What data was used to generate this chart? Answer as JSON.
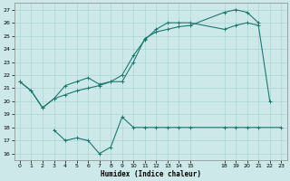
{
  "xlabel": "Humidex (Indice chaleur)",
  "bg_color": "#cce8e8",
  "line_color": "#1a7a6e",
  "grid_color": "#aad4d4",
  "xlim": [
    -0.5,
    23.5
  ],
  "ylim": [
    15.5,
    27.5
  ],
  "xticks": [
    0,
    1,
    2,
    3,
    4,
    5,
    6,
    7,
    8,
    9,
    10,
    11,
    12,
    13,
    14,
    15,
    18,
    19,
    20,
    21,
    22,
    23
  ],
  "yticks": [
    16,
    17,
    18,
    19,
    20,
    21,
    22,
    23,
    24,
    25,
    26,
    27
  ],
  "line1_x": [
    0,
    1,
    2,
    3,
    4,
    5,
    6,
    7,
    8,
    9,
    10,
    11,
    12,
    13,
    14,
    15,
    18,
    19,
    20,
    21
  ],
  "line1_y": [
    21.5,
    20.8,
    19.5,
    20.2,
    20.5,
    20.8,
    21.0,
    21.2,
    21.5,
    21.5,
    23.0,
    24.8,
    25.3,
    25.5,
    25.7,
    25.8,
    26.8,
    27.0,
    26.8,
    26.0
  ],
  "line2_x": [
    0,
    1,
    2,
    3,
    4,
    5,
    6,
    7,
    8,
    9,
    10,
    11,
    12,
    13,
    14,
    15,
    18,
    19,
    20,
    21,
    22
  ],
  "line2_y": [
    21.5,
    20.8,
    19.5,
    20.2,
    21.2,
    21.5,
    21.8,
    21.3,
    21.5,
    22.0,
    23.5,
    24.7,
    25.5,
    26.0,
    26.0,
    26.0,
    25.5,
    25.8,
    26.0,
    25.8,
    20.0
  ],
  "line3_x": [
    3,
    4,
    5,
    6,
    7,
    8,
    9,
    10,
    11,
    12,
    13,
    14,
    15,
    18,
    19,
    20,
    21,
    23
  ],
  "line3_y": [
    17.8,
    17.0,
    17.2,
    17.0,
    16.0,
    16.5,
    18.8,
    18.0,
    18.0,
    18.0,
    18.0,
    18.0,
    18.0,
    18.0,
    18.0,
    18.0,
    18.0,
    18.0
  ]
}
